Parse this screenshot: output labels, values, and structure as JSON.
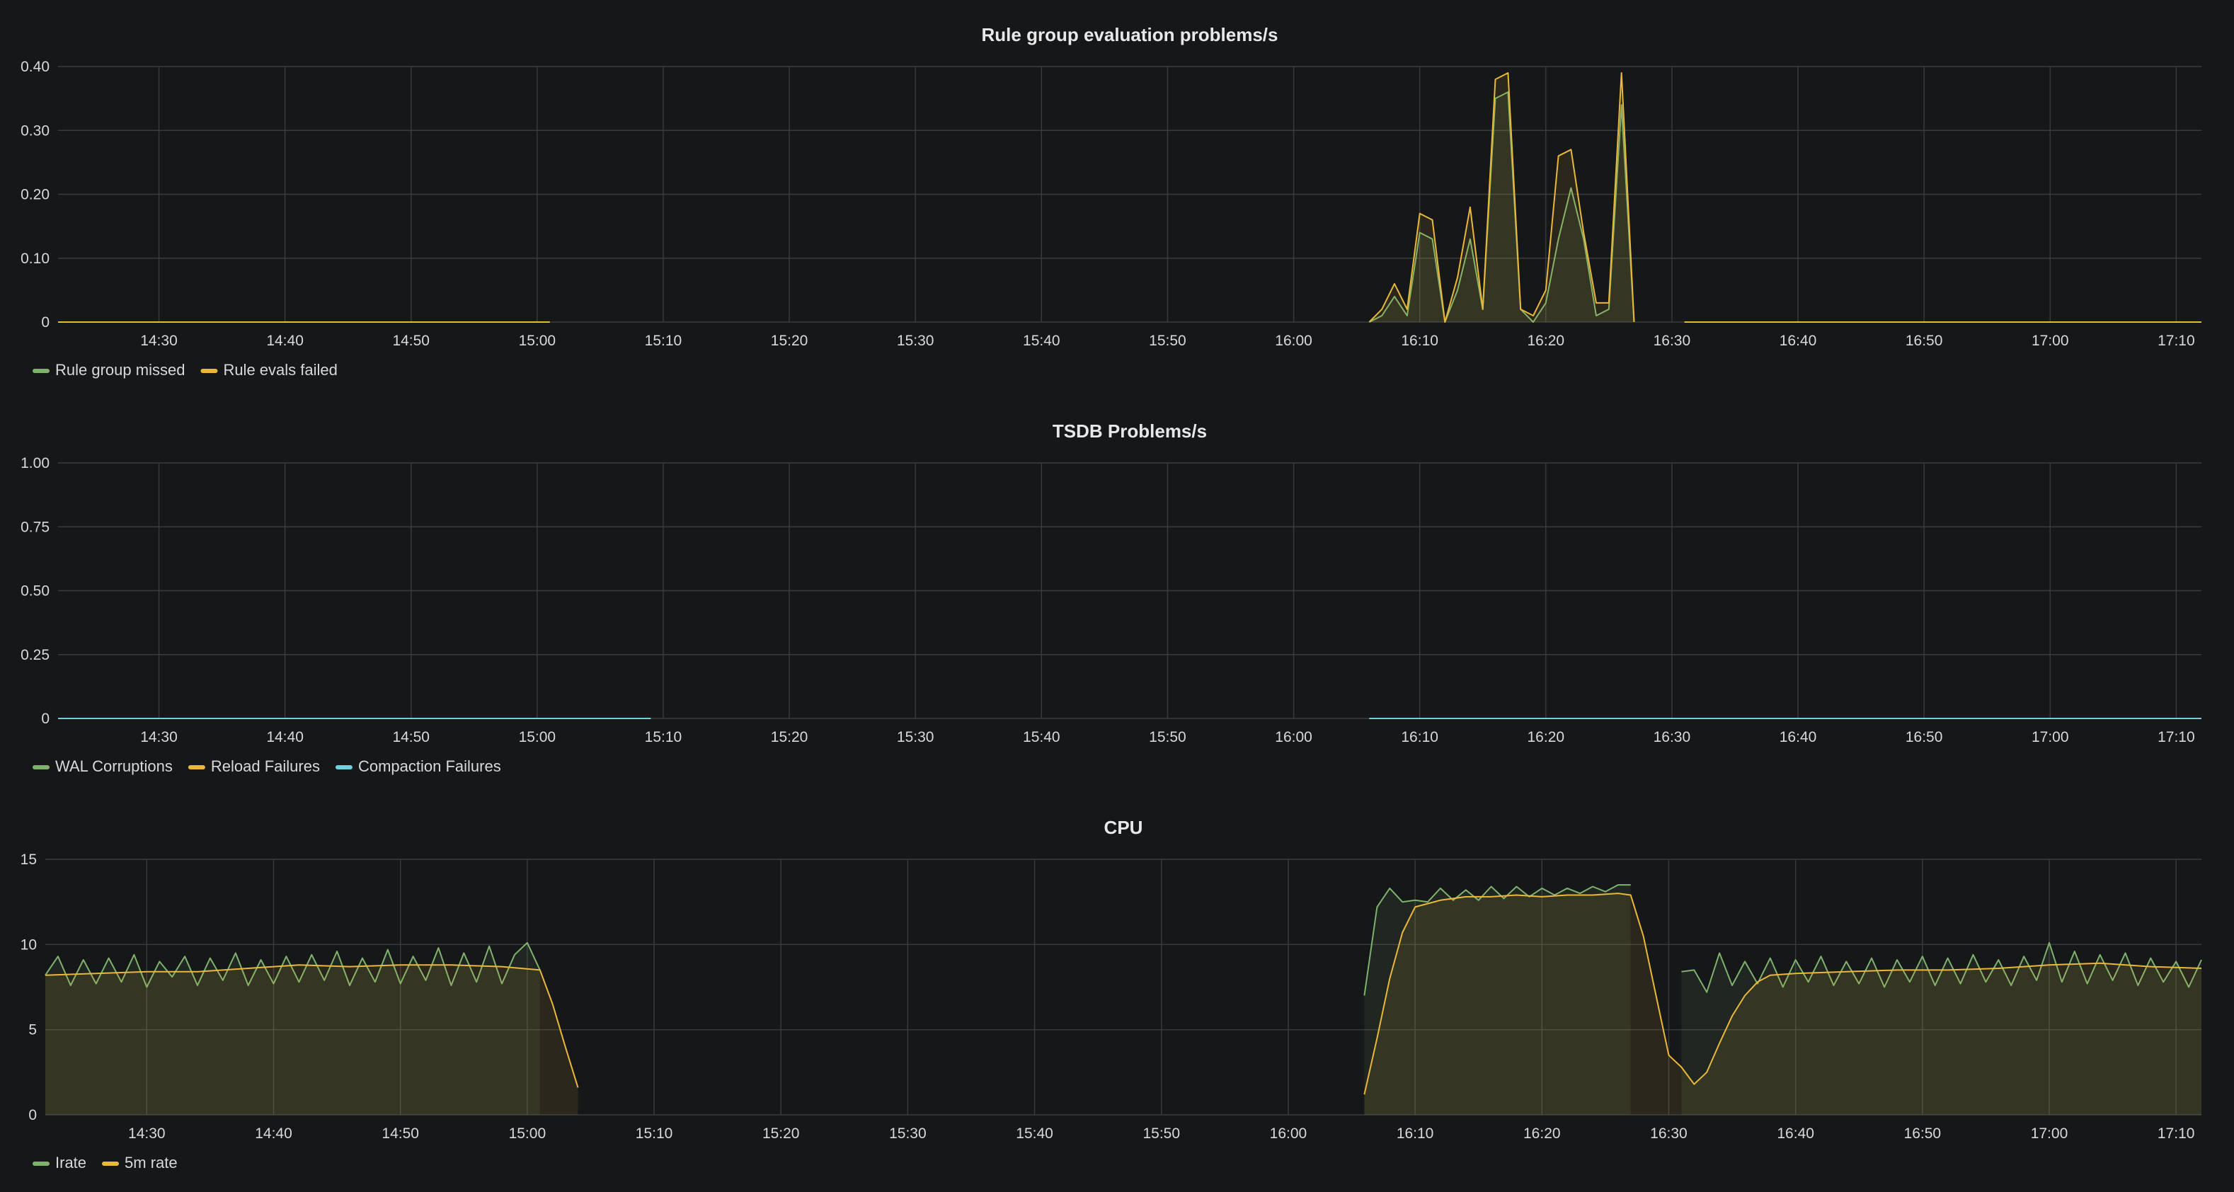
{
  "chart_data": [
    {
      "type": "line",
      "title": "Rule group evaluation problems/s",
      "xlabel": "",
      "ylabel": "",
      "x_tick_labels": [
        "14:30",
        "14:40",
        "14:50",
        "15:00",
        "15:10",
        "15:20",
        "15:30",
        "15:40",
        "15:50",
        "16:00",
        "16:10",
        "16:20",
        "16:30",
        "16:40",
        "16:50",
        "17:00",
        "17:10"
      ],
      "xlim": [
        "14:22",
        "17:12"
      ],
      "y_tick_labels": [
        "0",
        "0.10",
        "0.20",
        "0.30",
        "0.40"
      ],
      "ylim": [
        0,
        0.4
      ],
      "grid": true,
      "legend_position": "bottom-left",
      "series": [
        {
          "name": "Rule group missed",
          "color": "#7eb26d",
          "fill": true,
          "segments": [
            {
              "x": [
                "14:22",
                "15:01"
              ],
              "y": [
                0,
                0
              ]
            },
            {
              "x": [
                "16:06",
                "16:07",
                "16:08",
                "16:09",
                "16:10",
                "16:11",
                "16:12",
                "16:13",
                "16:14",
                "16:15",
                "16:16",
                "16:17",
                "16:18",
                "16:19",
                "16:20",
                "16:21",
                "16:22",
                "16:23",
                "16:24",
                "16:25",
                "16:26",
                "16:27"
              ],
              "y": [
                0,
                0.01,
                0.04,
                0.01,
                0.14,
                0.13,
                0.0,
                0.05,
                0.13,
                0.02,
                0.35,
                0.36,
                0.02,
                0.0,
                0.03,
                0.13,
                0.21,
                0.13,
                0.01,
                0.02,
                0.34,
                0.0
              ]
            },
            {
              "x": [
                "16:31",
                "17:12"
              ],
              "y": [
                0,
                0
              ]
            }
          ]
        },
        {
          "name": "Rule evals failed",
          "color": "#eab839",
          "fill": true,
          "segments": [
            {
              "x": [
                "14:22",
                "15:01"
              ],
              "y": [
                0,
                0
              ]
            },
            {
              "x": [
                "16:06",
                "16:07",
                "16:08",
                "16:09",
                "16:10",
                "16:11",
                "16:12",
                "16:13",
                "16:14",
                "16:15",
                "16:16",
                "16:17",
                "16:18",
                "16:19",
                "16:20",
                "16:21",
                "16:22",
                "16:23",
                "16:24",
                "16:25",
                "16:26",
                "16:27"
              ],
              "y": [
                0,
                0.02,
                0.06,
                0.02,
                0.17,
                0.16,
                0.0,
                0.07,
                0.18,
                0.02,
                0.38,
                0.39,
                0.02,
                0.01,
                0.05,
                0.26,
                0.27,
                0.14,
                0.03,
                0.03,
                0.39,
                0.0
              ]
            },
            {
              "x": [
                "16:31",
                "17:12"
              ],
              "y": [
                0,
                0
              ]
            }
          ]
        }
      ]
    },
    {
      "type": "line",
      "title": "TSDB Problems/s",
      "xlabel": "",
      "ylabel": "",
      "x_tick_labels": [
        "14:30",
        "14:40",
        "14:50",
        "15:00",
        "15:10",
        "15:20",
        "15:30",
        "15:40",
        "15:50",
        "16:00",
        "16:10",
        "16:20",
        "16:30",
        "16:40",
        "16:50",
        "17:00",
        "17:10"
      ],
      "xlim": [
        "14:22",
        "17:12"
      ],
      "y_tick_labels": [
        "0",
        "0.25",
        "0.50",
        "0.75",
        "1.00"
      ],
      "ylim": [
        0,
        1
      ],
      "grid": true,
      "legend_position": "bottom-left",
      "series": [
        {
          "name": "WAL Corruptions",
          "color": "#7eb26d",
          "fill": false,
          "segments": [
            {
              "x": [
                "14:22",
                "15:09"
              ],
              "y": [
                0,
                0
              ]
            },
            {
              "x": [
                "16:06",
                "17:12"
              ],
              "y": [
                0,
                0
              ]
            }
          ]
        },
        {
          "name": "Reload Failures",
          "color": "#eab839",
          "fill": false,
          "segments": [
            {
              "x": [
                "14:22",
                "15:09"
              ],
              "y": [
                0,
                0
              ]
            },
            {
              "x": [
                "16:06",
                "17:12"
              ],
              "y": [
                0,
                0
              ]
            }
          ]
        },
        {
          "name": "Compaction Failures",
          "color": "#6ed0e0",
          "fill": false,
          "segments": [
            {
              "x": [
                "14:22",
                "15:09"
              ],
              "y": [
                0,
                0
              ]
            },
            {
              "x": [
                "16:06",
                "17:12"
              ],
              "y": [
                0,
                0
              ]
            }
          ]
        }
      ]
    },
    {
      "type": "line",
      "title": "CPU",
      "xlabel": "",
      "ylabel": "",
      "x_tick_labels": [
        "14:30",
        "14:40",
        "14:50",
        "15:00",
        "15:10",
        "15:20",
        "15:30",
        "15:40",
        "15:50",
        "16:00",
        "16:10",
        "16:20",
        "16:30",
        "16:40",
        "16:50",
        "17:00",
        "17:10"
      ],
      "xlim": [
        "14:22",
        "17:12"
      ],
      "y_tick_labels": [
        "0",
        "5",
        "10",
        "15"
      ],
      "ylim": [
        0,
        15
      ],
      "grid": true,
      "legend_position": "bottom-left",
      "series": [
        {
          "name": "Irate",
          "color": "#7eb26d",
          "fill": true,
          "segments": [
            {
              "x": [
                "14:22",
                "14:23",
                "14:24",
                "14:25",
                "14:26",
                "14:27",
                "14:28",
                "14:29",
                "14:30",
                "14:31",
                "14:32",
                "14:33",
                "14:34",
                "14:35",
                "14:36",
                "14:37",
                "14:38",
                "14:39",
                "14:40",
                "14:41",
                "14:42",
                "14:43",
                "14:44",
                "14:45",
                "14:46",
                "14:47",
                "14:48",
                "14:49",
                "14:50",
                "14:51",
                "14:52",
                "14:53",
                "14:54",
                "14:55",
                "14:56",
                "14:57",
                "14:58",
                "14:59",
                "15:00",
                "15:01"
              ],
              "y": [
                8.2,
                9.3,
                7.6,
                9.1,
                7.7,
                9.2,
                7.8,
                9.4,
                7.5,
                9.0,
                8.1,
                9.3,
                7.6,
                9.2,
                7.9,
                9.5,
                7.6,
                9.1,
                7.7,
                9.3,
                7.8,
                9.4,
                7.9,
                9.6,
                7.6,
                9.2,
                7.8,
                9.7,
                7.7,
                9.3,
                7.9,
                9.8,
                7.6,
                9.5,
                7.8,
                9.9,
                7.7,
                9.4,
                10.1,
                8.5
              ]
            },
            {
              "x": [
                "16:06",
                "16:07",
                "16:08",
                "16:09",
                "16:10",
                "16:11",
                "16:12",
                "16:13",
                "16:14",
                "16:15",
                "16:16",
                "16:17",
                "16:18",
                "16:19",
                "16:20",
                "16:21",
                "16:22",
                "16:23",
                "16:24",
                "16:25",
                "16:26",
                "16:27"
              ],
              "y": [
                7.0,
                12.2,
                13.3,
                12.5,
                12.6,
                12.5,
                13.3,
                12.6,
                13.2,
                12.6,
                13.4,
                12.7,
                13.4,
                12.8,
                13.3,
                12.9,
                13.3,
                13.0,
                13.4,
                13.1,
                13.5,
                13.5
              ]
            },
            {
              "x": [
                "16:31",
                "16:32",
                "16:33",
                "16:34",
                "16:35",
                "16:36",
                "16:37",
                "16:38",
                "16:39",
                "16:40",
                "16:41",
                "16:42",
                "16:43",
                "16:44",
                "16:45",
                "16:46",
                "16:47",
                "16:48",
                "16:49",
                "16:50",
                "16:51",
                "16:52",
                "16:53",
                "16:54",
                "16:55",
                "16:56",
                "16:57",
                "16:58",
                "16:59",
                "17:00",
                "17:01",
                "17:02",
                "17:03",
                "17:04",
                "17:05",
                "17:06",
                "17:07",
                "17:08",
                "17:09",
                "17:10",
                "17:11",
                "17:12"
              ],
              "y": [
                8.4,
                8.5,
                7.2,
                9.5,
                7.6,
                9.0,
                7.7,
                9.2,
                7.5,
                9.1,
                7.8,
                9.3,
                7.6,
                9.0,
                7.7,
                9.2,
                7.5,
                9.1,
                7.8,
                9.3,
                7.6,
                9.2,
                7.7,
                9.4,
                7.8,
                9.1,
                7.6,
                9.3,
                7.9,
                10.1,
                7.8,
                9.6,
                7.7,
                9.4,
                7.9,
                9.5,
                7.6,
                9.2,
                7.8,
                9.0,
                7.5,
                9.1
              ]
            }
          ]
        },
        {
          "name": "5m rate",
          "color": "#eab839",
          "fill": true,
          "segments": [
            {
              "x": [
                "14:22",
                "14:26",
                "14:30",
                "14:34",
                "14:38",
                "14:42",
                "14:46",
                "14:50",
                "14:54",
                "14:58",
                "15:01",
                "15:02",
                "15:03",
                "15:04"
              ],
              "y": [
                8.2,
                8.3,
                8.4,
                8.4,
                8.6,
                8.8,
                8.7,
                8.8,
                8.8,
                8.7,
                8.5,
                6.5,
                4.0,
                1.6
              ]
            },
            {
              "x": [
                "16:06",
                "16:07",
                "16:08",
                "16:09",
                "16:10",
                "16:12",
                "16:14",
                "16:16",
                "16:18",
                "16:20",
                "16:22",
                "16:24",
                "16:26",
                "16:27",
                "16:28",
                "16:29",
                "16:30",
                "16:31",
                "16:32",
                "16:33",
                "16:34",
                "16:35",
                "16:36",
                "16:37",
                "16:38",
                "16:40",
                "16:44",
                "16:48",
                "16:52",
                "16:56",
                "17:00",
                "17:04",
                "17:08",
                "17:12"
              ],
              "y": [
                1.2,
                4.5,
                8.0,
                10.7,
                12.2,
                12.6,
                12.8,
                12.8,
                12.9,
                12.8,
                12.9,
                12.9,
                13.0,
                12.9,
                10.5,
                7.0,
                3.5,
                2.8,
                1.8,
                2.5,
                4.2,
                5.8,
                7.0,
                7.8,
                8.2,
                8.3,
                8.4,
                8.5,
                8.5,
                8.6,
                8.8,
                8.9,
                8.7,
                8.6
              ]
            }
          ]
        }
      ]
    }
  ]
}
